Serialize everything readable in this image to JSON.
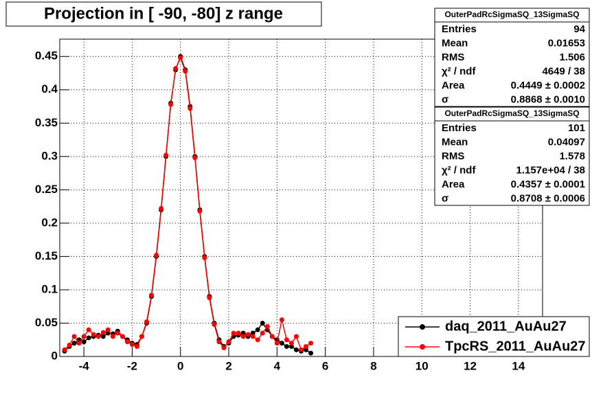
{
  "chart_data": {
    "type": "scatter",
    "title": "Projection in [ -90, -80] z range",
    "x": [
      -4.8,
      -4.6,
      -4.4,
      -4.2,
      -4.0,
      -3.8,
      -3.6,
      -3.4,
      -3.2,
      -3.0,
      -2.8,
      -2.6,
      -2.4,
      -2.2,
      -2.0,
      -1.8,
      -1.6,
      -1.4,
      -1.2,
      -1.0,
      -0.8,
      -0.6,
      -0.4,
      -0.2,
      0,
      0.2,
      0.4,
      0.6,
      0.8,
      1.0,
      1.2,
      1.4,
      1.6,
      1.8,
      2.0,
      2.2,
      2.4,
      2.6,
      2.8,
      3.0,
      3.2,
      3.4,
      3.6,
      3.8,
      4.0,
      4.2,
      4.4,
      4.6,
      4.8,
      5.0,
      5.2,
      5.4
    ],
    "series": [
      {
        "name": "daq_2011_AuAu27",
        "color": "#000000",
        "values": [
          0.008,
          0.015,
          0.02,
          0.025,
          0.022,
          0.028,
          0.03,
          0.032,
          0.03,
          0.035,
          0.034,
          0.038,
          0.03,
          0.025,
          0.02,
          0.018,
          0.03,
          0.05,
          0.09,
          0.15,
          0.22,
          0.3,
          0.38,
          0.43,
          0.45,
          0.43,
          0.375,
          0.3,
          0.22,
          0.15,
          0.09,
          0.05,
          0.025,
          0.015,
          0.02,
          0.03,
          0.032,
          0.035,
          0.03,
          0.035,
          0.04,
          0.05,
          0.04,
          0.03,
          0.025,
          0.02,
          0.015,
          0.015,
          0.01,
          0.008,
          0.01,
          0.005
        ]
      },
      {
        "name": "TpcRS_2011_AuAu27",
        "color": "#ff0000",
        "values": [
          0.01,
          0.017,
          0.03,
          0.02,
          0.03,
          0.04,
          0.033,
          0.03,
          0.036,
          0.04,
          0.03,
          0.035,
          0.03,
          0.022,
          0.018,
          0.015,
          0.03,
          0.052,
          0.092,
          0.152,
          0.222,
          0.302,
          0.378,
          0.432,
          0.448,
          0.428,
          0.372,
          0.298,
          0.218,
          0.148,
          0.088,
          0.048,
          0.022,
          0.013,
          0.022,
          0.035,
          0.035,
          0.03,
          0.033,
          0.03,
          0.025,
          0.035,
          0.045,
          0.03,
          0.02,
          0.055,
          0.025,
          0.02,
          0.03,
          0.01,
          0.015,
          0.02
        ]
      }
    ],
    "xlim": [
      -5,
      15
    ],
    "ylim": [
      0,
      0.476
    ],
    "xticks": [
      -4,
      -2,
      0,
      2,
      4,
      6,
      8,
      10,
      12,
      14
    ],
    "yticks": [
      0,
      0.05,
      0.1,
      0.15,
      0.2,
      0.25,
      0.3,
      0.35,
      0.4,
      0.45
    ],
    "grid": true,
    "legend": "lower-right",
    "stats_boxes": [
      {
        "title": "OuterPadRcSigmaSQ_13SigmaSQ",
        "rows": [
          [
            "Entries",
            "94"
          ],
          [
            "Mean",
            "0.01653"
          ],
          [
            "RMS",
            "1.506"
          ],
          [
            "χ² / ndf",
            "4649 / 38"
          ],
          [
            "Area",
            "0.4449 ± 0.0002"
          ],
          [
            "σ",
            "0.8868 ± 0.0010"
          ]
        ]
      },
      {
        "title": "OuterPadRcSigmaSQ_13SigmaSQ",
        "rows": [
          [
            "Entries",
            "101"
          ],
          [
            "Mean",
            "0.04097"
          ],
          [
            "RMS",
            "1.578"
          ],
          [
            "χ² / ndf",
            "1.157e+04 / 38"
          ],
          [
            "Area",
            "0.4357 ± 0.0001"
          ],
          [
            "σ",
            "0.8708 ± 0.0006"
          ]
        ]
      }
    ]
  }
}
